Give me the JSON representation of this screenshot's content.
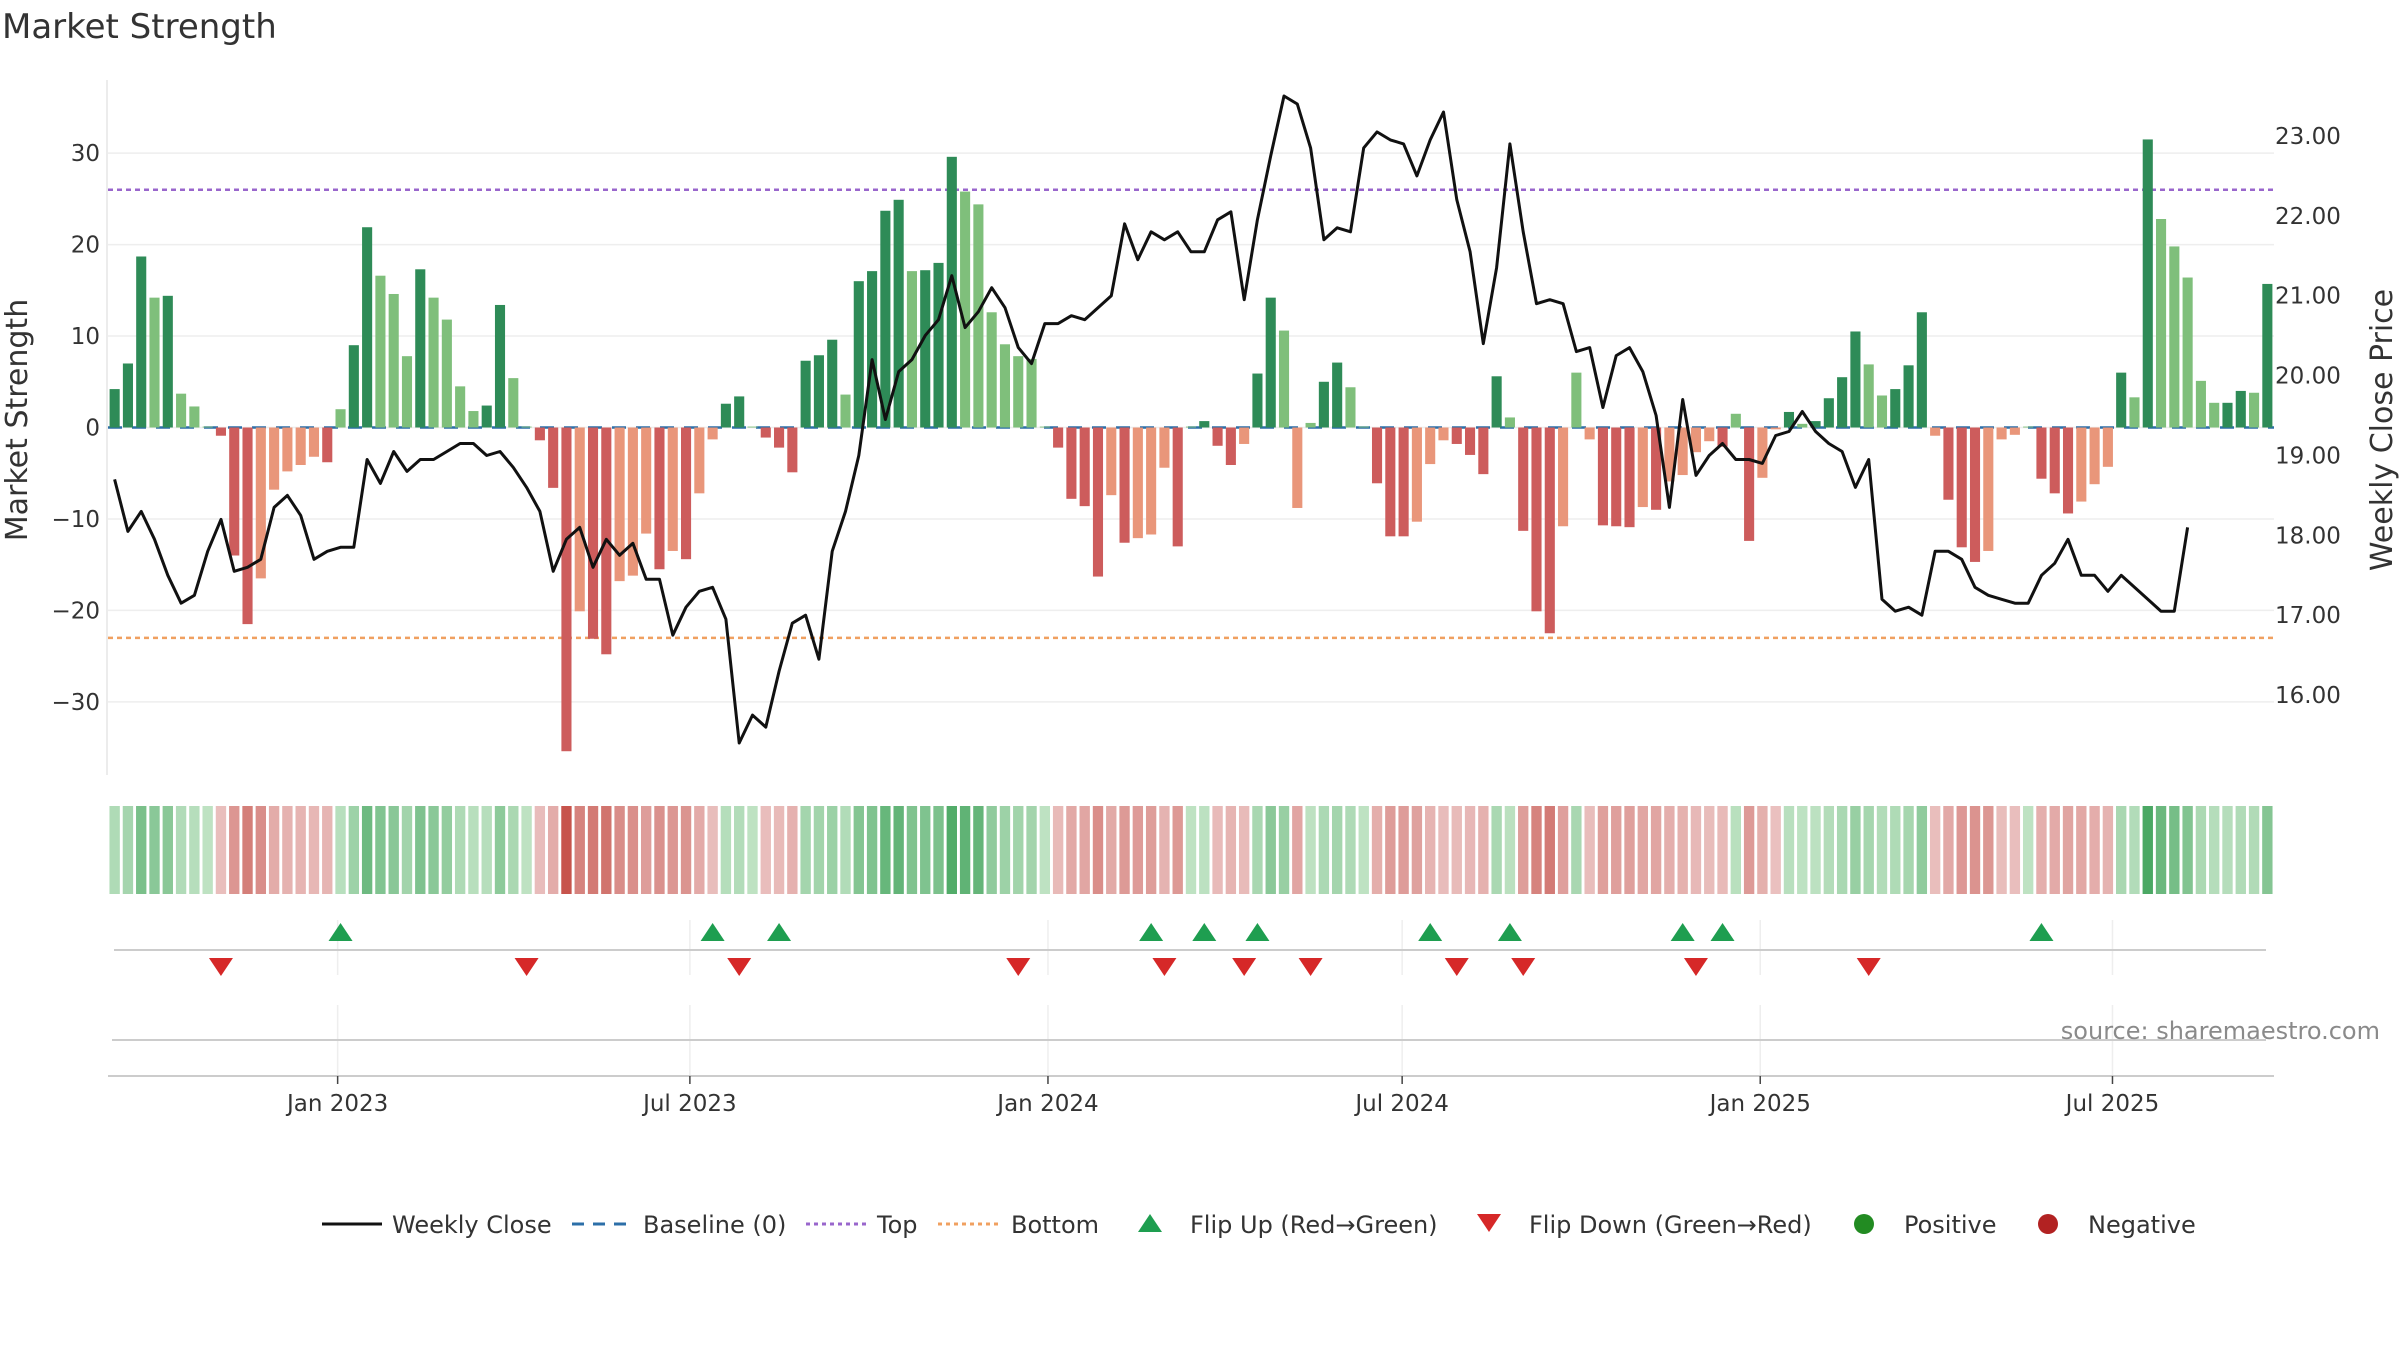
{
  "chart_data": {
    "type": "bar",
    "title": "Market Strength",
    "ylabel": "Market Strength",
    "y2label": "Weekly Close Price",
    "ylim": [
      -38,
      38
    ],
    "y2lim": [
      15.0,
      23.7
    ],
    "yticks": [
      -30,
      -20,
      -10,
      0,
      10,
      20,
      30
    ],
    "y2ticks": [
      "16.00",
      "17.00",
      "18.00",
      "19.00",
      "20.00",
      "21.00",
      "22.00",
      "23.00"
    ],
    "x_start": "2022-09-05",
    "x_end": "2025-09-22",
    "xticks": [
      {
        "date": "2023-01-01",
        "label": "Jan 2023"
      },
      {
        "date": "2023-07-01",
        "label": "Jul 2023"
      },
      {
        "date": "2024-01-01",
        "label": "Jan 2024"
      },
      {
        "date": "2024-07-01",
        "label": "Jul 2024"
      },
      {
        "date": "2025-01-01",
        "label": "Jan 2025"
      },
      {
        "date": "2025-07-01",
        "label": "Jul 2025"
      }
    ],
    "top": 26,
    "bottom": -23,
    "strength": [
      4.2,
      7,
      18.7,
      14.2,
      14.4,
      3.7,
      2.3,
      0.1,
      -0.9,
      -14,
      -21.5,
      -16.5,
      -6.8,
      -4.8,
      -4.1,
      -3.2,
      -3.8,
      2,
      9,
      21.9,
      16.6,
      14.6,
      7.8,
      17.3,
      14.2,
      11.8,
      4.5,
      1.8,
      2.4,
      13.4,
      5.4,
      0.1,
      -1.4,
      -6.6,
      -35.4,
      -20.1,
      -23.1,
      -24.8,
      -16.8,
      -16.2,
      -11.6,
      -15.5,
      -13.5,
      -14.4,
      -7.2,
      -1.3,
      2.6,
      3.4,
      0.1,
      -1.1,
      -2.2,
      -4.9,
      7.3,
      7.9,
      9.6,
      3.6,
      16,
      17.1,
      23.7,
      24.9,
      17.1,
      17.2,
      18,
      29.6,
      25.8,
      24.4,
      12.6,
      9.1,
      7.8,
      7.5,
      0.1,
      -2.2,
      -7.8,
      -8.6,
      -16.3,
      -7.4,
      -12.6,
      -12.1,
      -11.7,
      -4.4,
      -13,
      0.1,
      0.7,
      -2,
      -4.1,
      -1.8,
      5.9,
      14.2,
      10.6,
      -8.8,
      0.5,
      5,
      7.1,
      4.4,
      0.1,
      -6.1,
      -11.9,
      -11.9,
      -10.3,
      -4,
      -1.4,
      -1.8,
      -3,
      -5.1,
      5.6,
      1.1,
      -11.3,
      -20.1,
      -22.5,
      -10.8,
      6,
      -1.3,
      -10.7,
      -10.8,
      -10.9,
      -8.7,
      -9,
      -5.9,
      -5.2,
      -2.7,
      -1.5,
      -2.1,
      1.5,
      -12.4,
      -5.5,
      -0.2,
      1.7,
      0.4,
      0.7,
      3.2,
      5.5,
      10.5,
      6.9,
      3.5,
      4.2,
      6.8,
      12.6,
      -0.9,
      -7.9,
      -13.1,
      -14.7,
      -13.5,
      -1.3,
      -0.8,
      0.1,
      -5.6,
      -7.2,
      -9.4,
      -8.1,
      -6.2,
      -4.3,
      6,
      3.3,
      31.5,
      22.8,
      19.8,
      16.4,
      5.1,
      2.7,
      2.7,
      4,
      3.8,
      15.7
    ],
    "close": [
      18.7,
      18.05,
      18.3,
      17.95,
      17.5,
      17.15,
      17.25,
      17.8,
      18.2,
      17.55,
      17.6,
      17.7,
      18.35,
      18.5,
      18.25,
      17.7,
      17.8,
      17.85,
      17.85,
      18.95,
      18.65,
      19.05,
      18.8,
      18.95,
      18.95,
      19.05,
      19.15,
      19.15,
      19.0,
      19.05,
      18.85,
      18.6,
      18.3,
      17.55,
      17.95,
      18.1,
      17.6,
      17.95,
      17.75,
      17.9,
      17.45,
      17.45,
      16.75,
      17.1,
      17.3,
      17.35,
      16.95,
      15.4,
      15.75,
      15.6,
      16.3,
      16.9,
      17.0,
      16.45,
      17.8,
      18.3,
      19.0,
      20.2,
      19.45,
      20.05,
      20.2,
      20.5,
      20.7,
      21.25,
      20.6,
      20.8,
      21.1,
      20.85,
      20.35,
      20.15,
      20.65,
      20.65,
      20.75,
      20.7,
      20.85,
      21.0,
      21.9,
      21.45,
      21.8,
      21.7,
      21.8,
      21.55,
      21.55,
      21.95,
      22.05,
      20.95,
      21.95,
      22.75,
      23.5,
      23.4,
      22.85,
      21.7,
      21.85,
      21.8,
      22.85,
      23.05,
      22.95,
      22.9,
      22.5,
      22.95,
      23.3,
      22.2,
      21.55,
      20.4,
      21.35,
      22.9,
      21.8,
      20.9,
      20.95,
      20.9,
      20.3,
      20.35,
      19.6,
      20.25,
      20.35,
      20.05,
      19.5,
      18.35,
      19.7,
      18.75,
      19.0,
      19.15,
      18.95,
      18.95,
      18.9,
      19.25,
      19.3,
      19.55,
      19.3,
      19.15,
      19.05,
      18.6,
      18.95,
      17.2,
      17.05,
      17.1,
      17.0,
      17.8,
      17.8,
      17.7,
      17.35,
      17.25,
      17.2,
      17.15,
      17.15,
      17.5,
      17.65,
      17.95,
      17.5,
      17.5,
      17.3,
      17.5,
      17.35,
      17.2,
      17.05,
      17.05,
      18.1
    ],
    "flip_up_weeks": [
      17,
      45,
      50,
      78,
      82,
      86,
      99,
      105,
      118,
      121,
      145
    ],
    "flip_down_weeks": [
      8,
      31,
      47,
      68,
      79,
      85,
      90,
      101,
      106,
      119,
      132
    ],
    "series": [
      {
        "name": "Weekly Close",
        "color": "#111111"
      },
      {
        "name": "Baseline (0)",
        "color": "#2c6fa8"
      },
      {
        "name": "Top",
        "color": "#9966cc"
      },
      {
        "name": "Bottom",
        "color": "#f0a060"
      },
      {
        "name": "Flip Up (Red→Green)",
        "color": "#1e9e50"
      },
      {
        "name": "Flip Down (Green→Red)",
        "color": "#d62828"
      },
      {
        "name": "Positive",
        "color": "#228b22"
      },
      {
        "name": "Negative",
        "color": "#b22222"
      }
    ],
    "source": "source: sharemaestro.com"
  }
}
